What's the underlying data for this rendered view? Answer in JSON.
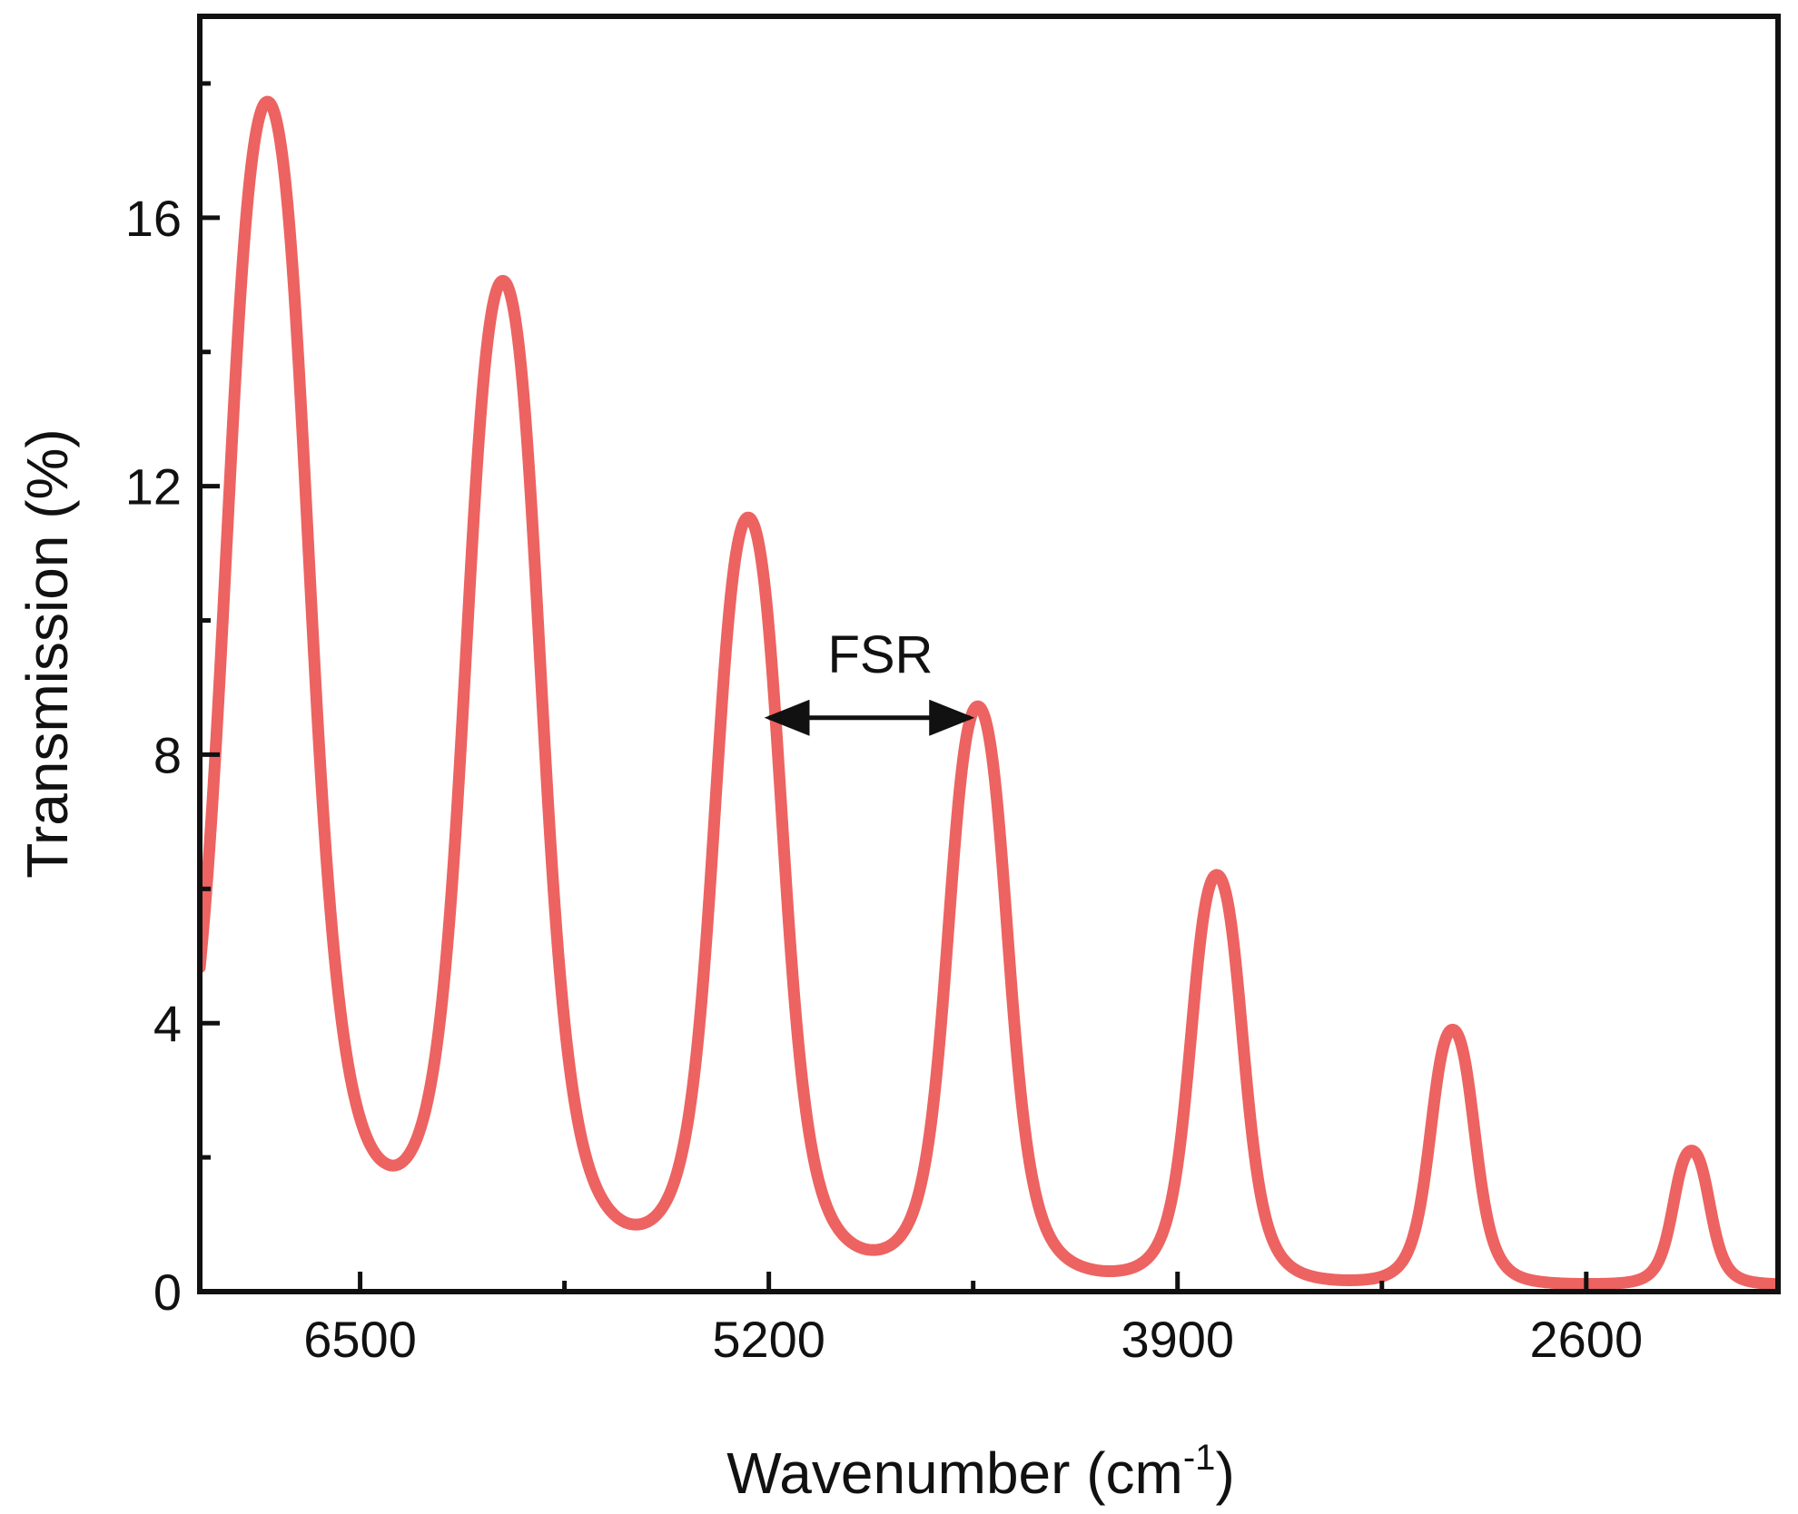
{
  "chart_data": {
    "type": "line",
    "xlabel": "Wavenumber (cm",
    "xlabel_sup": "-1",
    "xlabel_end": ")",
    "ylabel": "Transmission (%)",
    "xlim": [
      7010,
      1990
    ],
    "ylim": [
      0,
      19.0
    ],
    "x_reversed": true,
    "xticks": [
      6500,
      5200,
      3900,
      2600
    ],
    "xtick_labels": [
      "6500",
      "5200",
      "3900",
      "2600"
    ],
    "x_minor_ticks": [
      5850,
      4550,
      3250
    ],
    "yticks": [
      0,
      4,
      8,
      12,
      16
    ],
    "ytick_labels": [
      "0",
      "4",
      "8",
      "12",
      "16"
    ],
    "y_minor_ticks": [
      2,
      6,
      10,
      14,
      18
    ],
    "grid": false,
    "line_color": "#ec6361",
    "series": [
      {
        "name": "",
        "peaks": [
          {
            "x": 6795,
            "y": 17.7
          },
          {
            "x": 6045,
            "y": 15.0
          },
          {
            "x": 5265,
            "y": 11.5
          },
          {
            "x": 4535,
            "y": 8.7
          },
          {
            "x": 3775,
            "y": 6.2
          },
          {
            "x": 3025,
            "y": 3.9
          },
          {
            "x": 2265,
            "y": 2.1
          }
        ],
        "minima": [
          {
            "x": 6420,
            "y": 0.85
          },
          {
            "x": 5655,
            "y": 0.5
          },
          {
            "x": 4900,
            "y": 0.3
          },
          {
            "x": 4150,
            "y": 0.18
          },
          {
            "x": 3400,
            "y": 0.12
          },
          {
            "x": 2650,
            "y": 0.1
          }
        ]
      }
    ],
    "annotations": [
      {
        "text": "FSR",
        "x1": 5200,
        "x2": 4560,
        "y": 8.55
      }
    ]
  }
}
